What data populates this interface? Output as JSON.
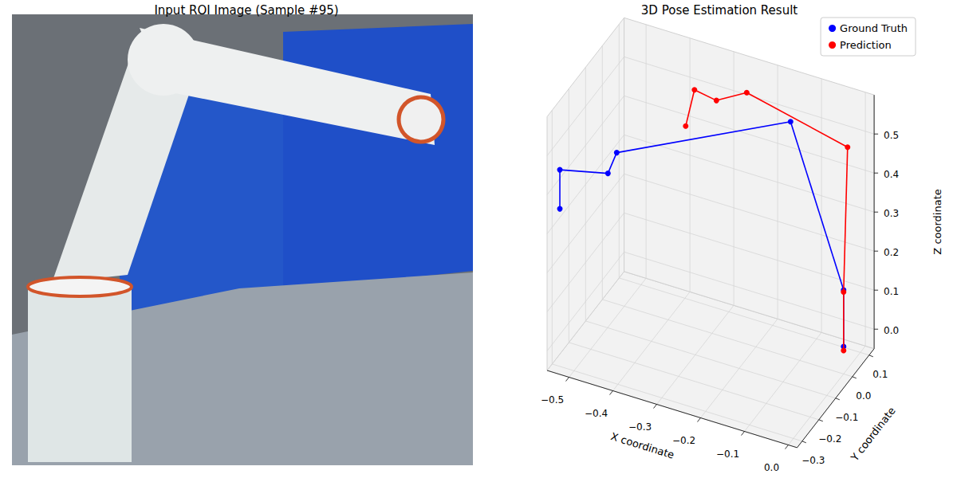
{
  "image_title": "Input ROI Image (Sample #95)",
  "chart_data": {
    "type": "line3d",
    "title": "3D Pose Estimation Result",
    "x_label": "X coordinate",
    "y_label": "Y coordinate",
    "z_label": "Z coordinate",
    "xlim": [
      -0.55,
      0.02
    ],
    "ylim": [
      -0.33,
      0.13
    ],
    "zlim": [
      -0.05,
      0.6
    ],
    "xticks": [
      {
        "value": -0.5,
        "label": "−0.5"
      },
      {
        "value": -0.4,
        "label": "−0.4"
      },
      {
        "value": -0.3,
        "label": "−0.3"
      },
      {
        "value": -0.2,
        "label": "−0.2"
      },
      {
        "value": -0.1,
        "label": "−0.1"
      },
      {
        "value": 0,
        "label": "0.0"
      }
    ],
    "yticks": [
      {
        "value": -0.3,
        "label": "−0.3"
      },
      {
        "value": -0.2,
        "label": "−0.2"
      },
      {
        "value": -0.1,
        "label": "−0.1"
      },
      {
        "value": 0,
        "label": "0.0"
      },
      0.1
    ],
    "zticks": [
      {
        "value": 0,
        "label": "0.0"
      },
      0.1,
      0.2,
      0.3,
      0.4,
      0.5
    ],
    "grid": true,
    "legend": "upper right",
    "series": [
      {
        "name": "Ground Truth",
        "color": "#0000ff",
        "marker": "circle",
        "line_style": "solid",
        "x": [
          -0.54,
          -0.54,
          -0.48,
          -0.46,
          -0.14,
          0.0,
          0.0
        ],
        "y": [
          -0.28,
          -0.28,
          -0.15,
          -0.15,
          0.05,
          0.0,
          0.0
        ],
        "z": [
          0.34,
          0.44,
          0.38,
          0.44,
          0.52,
          0.165,
          0.02
        ]
      },
      {
        "name": "Prediction",
        "color": "#ff0000",
        "marker": "circle",
        "line_style": "solid",
        "x": [
          -0.36,
          -0.34,
          -0.29,
          -0.24,
          -0.01,
          0.0,
          0.0
        ],
        "y": [
          0.0,
          0.0,
          0.0,
          0.05,
          0.05,
          0.0,
          0.0
        ],
        "z": [
          0.46,
          0.56,
          0.55,
          0.56,
          0.5,
          0.16,
          0.01
        ]
      }
    ]
  }
}
